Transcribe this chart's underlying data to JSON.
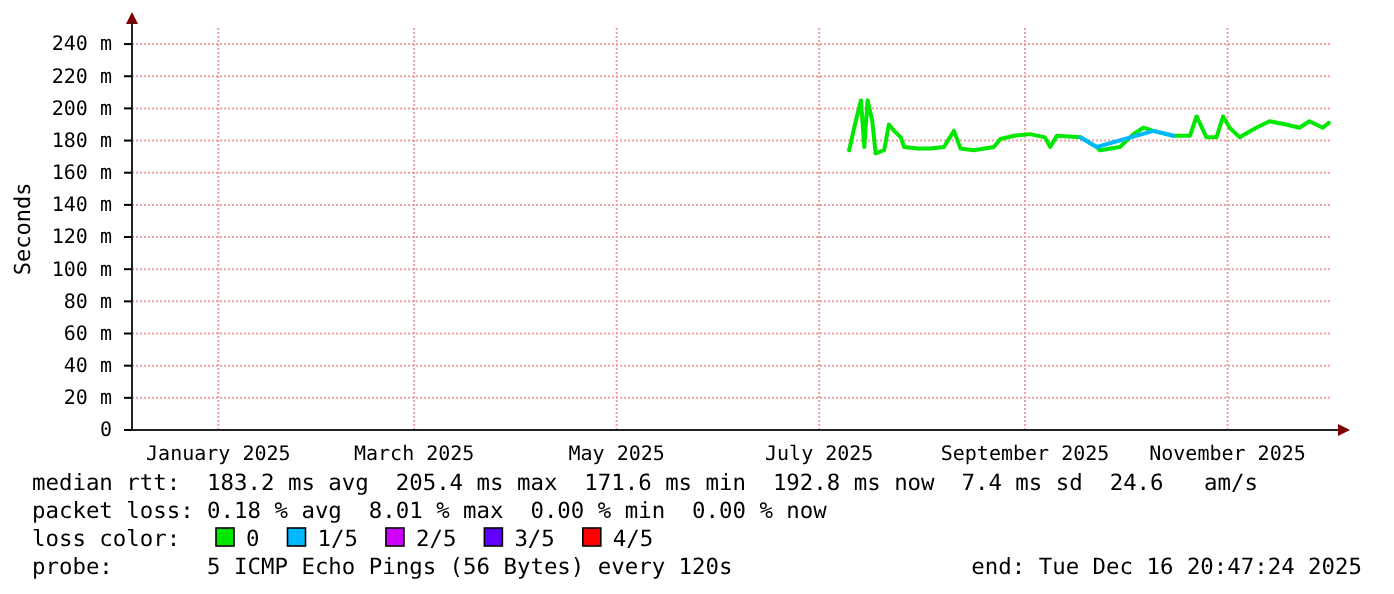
{
  "chart_data": {
    "type": "line",
    "ylabel": "Seconds",
    "xlim": [
      "2024-12-21",
      "2025-12-16T20:47"
    ],
    "xticks": [
      {
        "value": "2025-01-16",
        "label": "January 2025"
      },
      {
        "value": "2025-03-16",
        "label": "March 2025"
      },
      {
        "value": "2025-05-16",
        "label": "May 2025"
      },
      {
        "value": "2025-07-16",
        "label": "July 2025"
      },
      {
        "value": "2025-09-16",
        "label": "September 2025"
      },
      {
        "value": "2025-11-16",
        "label": "November 2025"
      }
    ],
    "ylim": [
      0,
      250
    ],
    "yticks": [
      0,
      {
        "value": 20,
        "label": "20 m"
      },
      {
        "value": 40,
        "label": "40 m"
      },
      {
        "value": 60,
        "label": "60 m"
      },
      {
        "value": 80,
        "label": "80 m"
      },
      {
        "value": 100,
        "label": "100 m"
      },
      {
        "value": 120,
        "label": "120 m"
      },
      {
        "value": 140,
        "label": "140 m"
      },
      {
        "value": 160,
        "label": "160 m"
      },
      {
        "value": 180,
        "label": "180 m"
      },
      {
        "value": 200,
        "label": "200 m"
      },
      {
        "value": 220,
        "label": "220 m"
      },
      {
        "value": 240,
        "label": "240 m"
      }
    ],
    "grid": true,
    "legend": "bottom",
    "legend_title": "loss color:",
    "series": [
      {
        "name": "0",
        "color": "#00e800",
        "x": [
          "2025-07-25",
          "2025-07-27",
          "2025-07-28T14:00",
          "2025-07-29T14:00",
          "2025-07-30T14:00",
          "2025-08-01",
          "2025-08-02",
          "2025-08-04T14:00",
          "2025-08-06",
          "2025-08-07T14:00",
          "2025-08-09T14:00",
          "2025-08-10T14:00",
          "2025-08-14T14:00",
          "2025-08-18T14:00",
          "2025-08-22T14:00",
          "2025-08-25T14:00",
          "2025-08-27T14:00",
          "2025-08-31T14:00",
          "2025-09-06T14:00",
          "2025-09-08T14:00",
          "2025-09-12T16:00",
          "2025-09-17T14:00",
          "2025-09-22",
          "2025-09-23T14:00",
          "2025-09-25T14:00",
          "2025-10-02T16:00",
          "2025-10-07T14:00",
          "2025-10-08T14:00",
          "2025-10-14T14:00",
          "2025-10-18T16:00",
          "2025-10-21T16:00",
          "2025-10-24T16:00",
          "2025-10-30T16:00",
          "2025-11-04T16:00",
          "2025-11-06T16:00",
          "2025-11-09T16:00",
          "2025-11-12T16:00",
          "2025-11-14T16:00",
          "2025-11-16T16:00",
          "2025-11-19T16:00",
          "2025-11-24T16:00",
          "2025-11-28T16:00",
          "2025-12-03T16:00",
          "2025-12-07T16:00",
          "2025-12-10T16:00",
          "2025-12-14T16:00",
          "2025-12-16T12:00"
        ],
        "values": [
          174,
          192,
          205,
          176,
          205,
          192,
          172,
          174,
          190,
          186,
          182,
          176,
          175,
          175,
          176,
          186,
          175,
          174,
          176,
          181,
          183,
          184,
          182,
          176,
          183,
          182,
          176,
          174,
          176,
          184,
          188,
          186,
          183,
          183,
          195,
          182,
          182,
          195,
          188,
          182,
          188,
          192,
          190,
          188,
          192,
          188,
          191
        ]
      },
      {
        "name": "1/5",
        "color": "#00b8ff",
        "x": [
          "2025-10-02T16:00",
          "2025-10-07T14:00",
          "2025-10-24T16:00",
          "2025-10-30T16:00"
        ],
        "values": [
          182,
          176,
          186,
          183
        ]
      },
      {
        "name": "2/5",
        "color": "#d000ff"
      },
      {
        "name": "3/5",
        "color": "#6000ff"
      },
      {
        "name": "4/5",
        "color": "#ff0000"
      }
    ],
    "annotations": [
      "median rtt:  183.2 ms avg  205.4 ms max  171.6 ms min  192.8 ms now  7.4 ms sd  24.6   am/s",
      "packet loss: 0.18 % avg  8.01 % max  0.00 % min  0.00 % now",
      "probe:       5 ICMP Echo Pings (56 Bytes) every 120s",
      "end: Tue Dec 16 20:47:24 2025"
    ]
  }
}
